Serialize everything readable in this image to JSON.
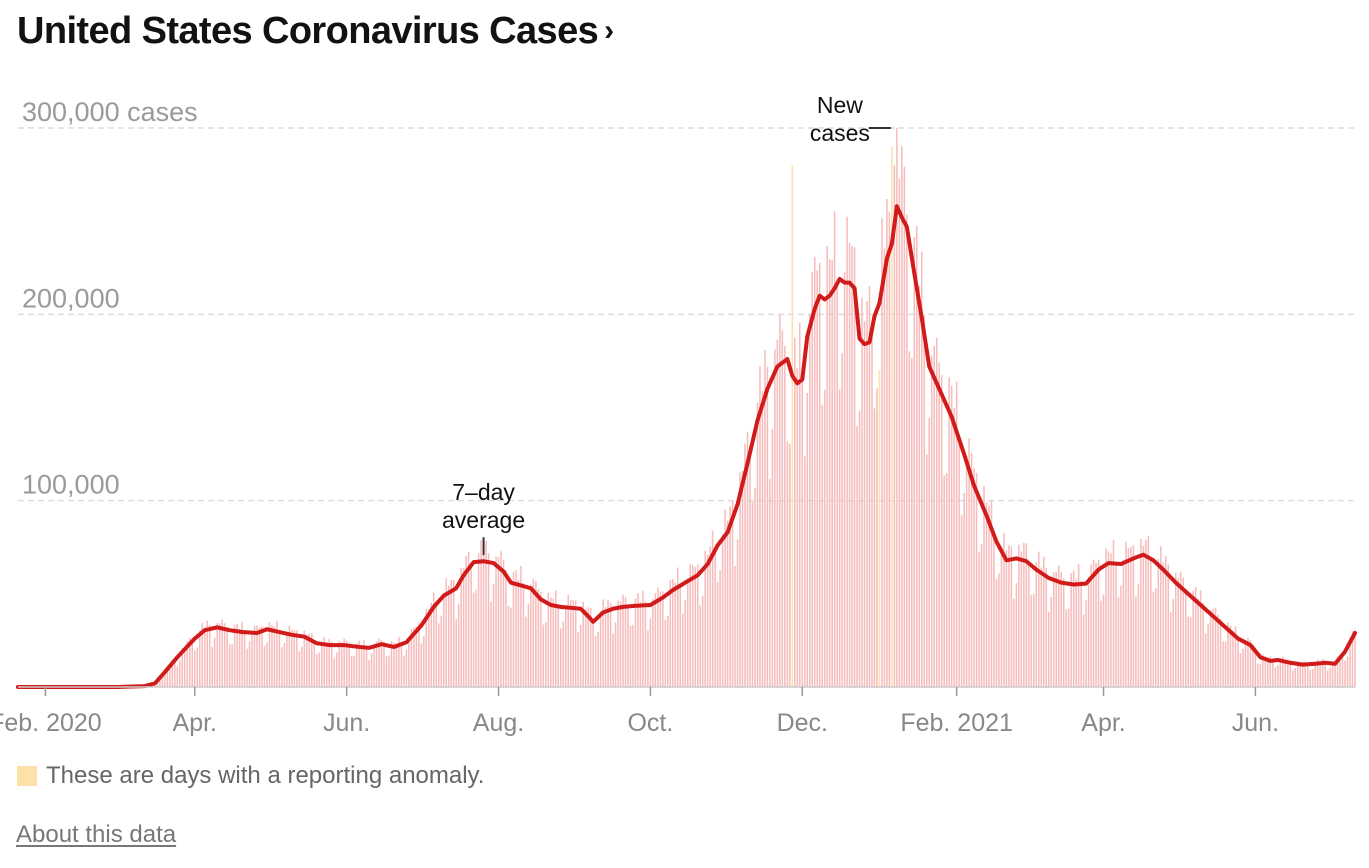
{
  "title": "United States Coronavirus Cases",
  "title_chevron": "›",
  "legend": {
    "anomaly_text": "These are days with a reporting anomaly.",
    "anomaly_color": "#fee1a9"
  },
  "about_link": "About this data",
  "colors": {
    "bars": "#f6bcbc",
    "average_line": "#d11a1a",
    "anomaly": "#fee1a9",
    "grid": "#dddddd",
    "axis_text": "#888888"
  },
  "chart_data": {
    "type": "bar",
    "title": "United States Coronavirus Cases",
    "ylabel": "cases",
    "ylim": [
      0,
      300000
    ],
    "y_ticks": [
      {
        "value": 300000,
        "label": "300,000 cases"
      },
      {
        "value": 200000,
        "label": "200,000"
      },
      {
        "value": 100000,
        "label": "100,000"
      }
    ],
    "x_range": [
      "2020-01-21",
      "2021-07-11"
    ],
    "x_ticks": [
      {
        "date": "2020-02-01",
        "label": "Feb. 2020"
      },
      {
        "date": "2020-04-01",
        "label": "Apr."
      },
      {
        "date": "2020-06-01",
        "label": "Jun."
      },
      {
        "date": "2020-08-01",
        "label": "Aug."
      },
      {
        "date": "2020-10-01",
        "label": "Oct."
      },
      {
        "date": "2020-12-01",
        "label": "Dec."
      },
      {
        "date": "2021-02-01",
        "label": "Feb. 2021"
      },
      {
        "date": "2021-04-01",
        "label": "Apr."
      },
      {
        "date": "2021-06-01",
        "label": "Jun."
      }
    ],
    "grid": true,
    "series": [
      {
        "name": "New cases",
        "kind": "daily bars",
        "anomaly_days": [
          "2020-11-27",
          "2021-01-01",
          "2021-01-06"
        ],
        "anomaly_values": [
          280000,
          170000,
          290000
        ],
        "spikes": [
          {
            "date": "2021-01-08",
            "value": 300000
          },
          {
            "date": "2021-01-07",
            "value": 280000
          }
        ]
      },
      {
        "name": "7-day average",
        "kind": "line",
        "points": [
          [
            "2020-01-21",
            0
          ],
          [
            "2020-03-01",
            0
          ],
          [
            "2020-03-12",
            500
          ],
          [
            "2020-03-16",
            2000
          ],
          [
            "2020-03-20",
            8000
          ],
          [
            "2020-03-25",
            16000
          ],
          [
            "2020-04-01",
            26000
          ],
          [
            "2020-04-05",
            30500
          ],
          [
            "2020-04-10",
            32000
          ],
          [
            "2020-04-15",
            30500
          ],
          [
            "2020-04-20",
            29500
          ],
          [
            "2020-04-26",
            29000
          ],
          [
            "2020-04-30",
            31000
          ],
          [
            "2020-05-05",
            29500
          ],
          [
            "2020-05-10",
            28000
          ],
          [
            "2020-05-15",
            27000
          ],
          [
            "2020-05-20",
            23500
          ],
          [
            "2020-05-25",
            22500
          ],
          [
            "2020-05-31",
            22500
          ],
          [
            "2020-06-06",
            21500
          ],
          [
            "2020-06-10",
            21000
          ],
          [
            "2020-06-15",
            23000
          ],
          [
            "2020-06-20",
            21500
          ],
          [
            "2020-06-25",
            24000
          ],
          [
            "2020-07-01",
            33000
          ],
          [
            "2020-07-06",
            43000
          ],
          [
            "2020-07-10",
            49000
          ],
          [
            "2020-07-15",
            53000
          ],
          [
            "2020-07-18",
            60000
          ],
          [
            "2020-07-22",
            67000
          ],
          [
            "2020-07-26",
            67500
          ],
          [
            "2020-07-30",
            66500
          ],
          [
            "2020-08-03",
            62000
          ],
          [
            "2020-08-06",
            56000
          ],
          [
            "2020-08-10",
            54500
          ],
          [
            "2020-08-14",
            53000
          ],
          [
            "2020-08-18",
            47000
          ],
          [
            "2020-08-22",
            44000
          ],
          [
            "2020-08-26",
            43000
          ],
          [
            "2020-08-30",
            42500
          ],
          [
            "2020-09-03",
            42000
          ],
          [
            "2020-09-06",
            38000
          ],
          [
            "2020-09-08",
            35000
          ],
          [
            "2020-09-12",
            40000
          ],
          [
            "2020-09-16",
            42000
          ],
          [
            "2020-09-20",
            43000
          ],
          [
            "2020-09-24",
            43500
          ],
          [
            "2020-09-28",
            43800
          ],
          [
            "2020-10-01",
            44000
          ],
          [
            "2020-10-06",
            48000
          ],
          [
            "2020-10-10",
            52000
          ],
          [
            "2020-10-15",
            56000
          ],
          [
            "2020-10-20",
            60000
          ],
          [
            "2020-10-24",
            66000
          ],
          [
            "2020-10-28",
            76000
          ],
          [
            "2020-11-01",
            83000
          ],
          [
            "2020-11-05",
            98000
          ],
          [
            "2020-11-09",
            120000
          ],
          [
            "2020-11-13",
            143000
          ],
          [
            "2020-11-17",
            160000
          ],
          [
            "2020-11-21",
            172000
          ],
          [
            "2020-11-25",
            176000
          ],
          [
            "2020-11-27",
            167000
          ],
          [
            "2020-11-29",
            163000
          ],
          [
            "2020-12-01",
            165000
          ],
          [
            "2020-12-03",
            188000
          ],
          [
            "2020-12-06",
            203000
          ],
          [
            "2020-12-08",
            210000
          ],
          [
            "2020-12-10",
            208000
          ],
          [
            "2020-12-12",
            210000
          ],
          [
            "2020-12-14",
            214000
          ],
          [
            "2020-12-16",
            219000
          ],
          [
            "2020-12-18",
            217000
          ],
          [
            "2020-12-20",
            217000
          ],
          [
            "2020-12-22",
            214000
          ],
          [
            "2020-12-24",
            187000
          ],
          [
            "2020-12-26",
            184000
          ],
          [
            "2020-12-28",
            185000
          ],
          [
            "2020-12-30",
            199000
          ],
          [
            "2021-01-01",
            206000
          ],
          [
            "2021-01-04",
            230000
          ],
          [
            "2021-01-06",
            238000
          ],
          [
            "2021-01-08",
            258000
          ],
          [
            "2021-01-10",
            252000
          ],
          [
            "2021-01-12",
            247000
          ],
          [
            "2021-01-15",
            222000
          ],
          [
            "2021-01-18",
            198000
          ],
          [
            "2021-01-21",
            172000
          ],
          [
            "2021-01-25",
            160000
          ],
          [
            "2021-01-30",
            145000
          ],
          [
            "2021-02-04",
            125000
          ],
          [
            "2021-02-08",
            108000
          ],
          [
            "2021-02-13",
            92000
          ],
          [
            "2021-02-17",
            78000
          ],
          [
            "2021-02-21",
            68000
          ],
          [
            "2021-02-25",
            69000
          ],
          [
            "2021-03-01",
            67500
          ],
          [
            "2021-03-05",
            63000
          ],
          [
            "2021-03-10",
            58500
          ],
          [
            "2021-03-15",
            56000
          ],
          [
            "2021-03-20",
            55000
          ],
          [
            "2021-03-25",
            55500
          ],
          [
            "2021-03-30",
            63000
          ],
          [
            "2021-04-03",
            66500
          ],
          [
            "2021-04-08",
            66000
          ],
          [
            "2021-04-13",
            69000
          ],
          [
            "2021-04-17",
            71000
          ],
          [
            "2021-04-21",
            68000
          ],
          [
            "2021-04-25",
            63000
          ],
          [
            "2021-04-30",
            56000
          ],
          [
            "2021-05-05",
            50000
          ],
          [
            "2021-05-10",
            44000
          ],
          [
            "2021-05-15",
            38000
          ],
          [
            "2021-05-20",
            32000
          ],
          [
            "2021-05-25",
            26000
          ],
          [
            "2021-05-30",
            22500
          ],
          [
            "2021-06-03",
            16000
          ],
          [
            "2021-06-07",
            14000
          ],
          [
            "2021-06-10",
            14500
          ],
          [
            "2021-06-15",
            13000
          ],
          [
            "2021-06-20",
            12000
          ],
          [
            "2021-06-25",
            12500
          ],
          [
            "2021-06-29",
            13000
          ],
          [
            "2021-07-03",
            12500
          ],
          [
            "2021-07-07",
            19000
          ],
          [
            "2021-07-11",
            29000
          ]
        ]
      }
    ],
    "annotations": [
      {
        "text": [
          "New",
          "cases"
        ],
        "date": "2021-01-08",
        "value": 300000
      },
      {
        "text": [
          "7–day",
          "average"
        ],
        "date": "2020-07-26",
        "value": 67500
      }
    ]
  }
}
